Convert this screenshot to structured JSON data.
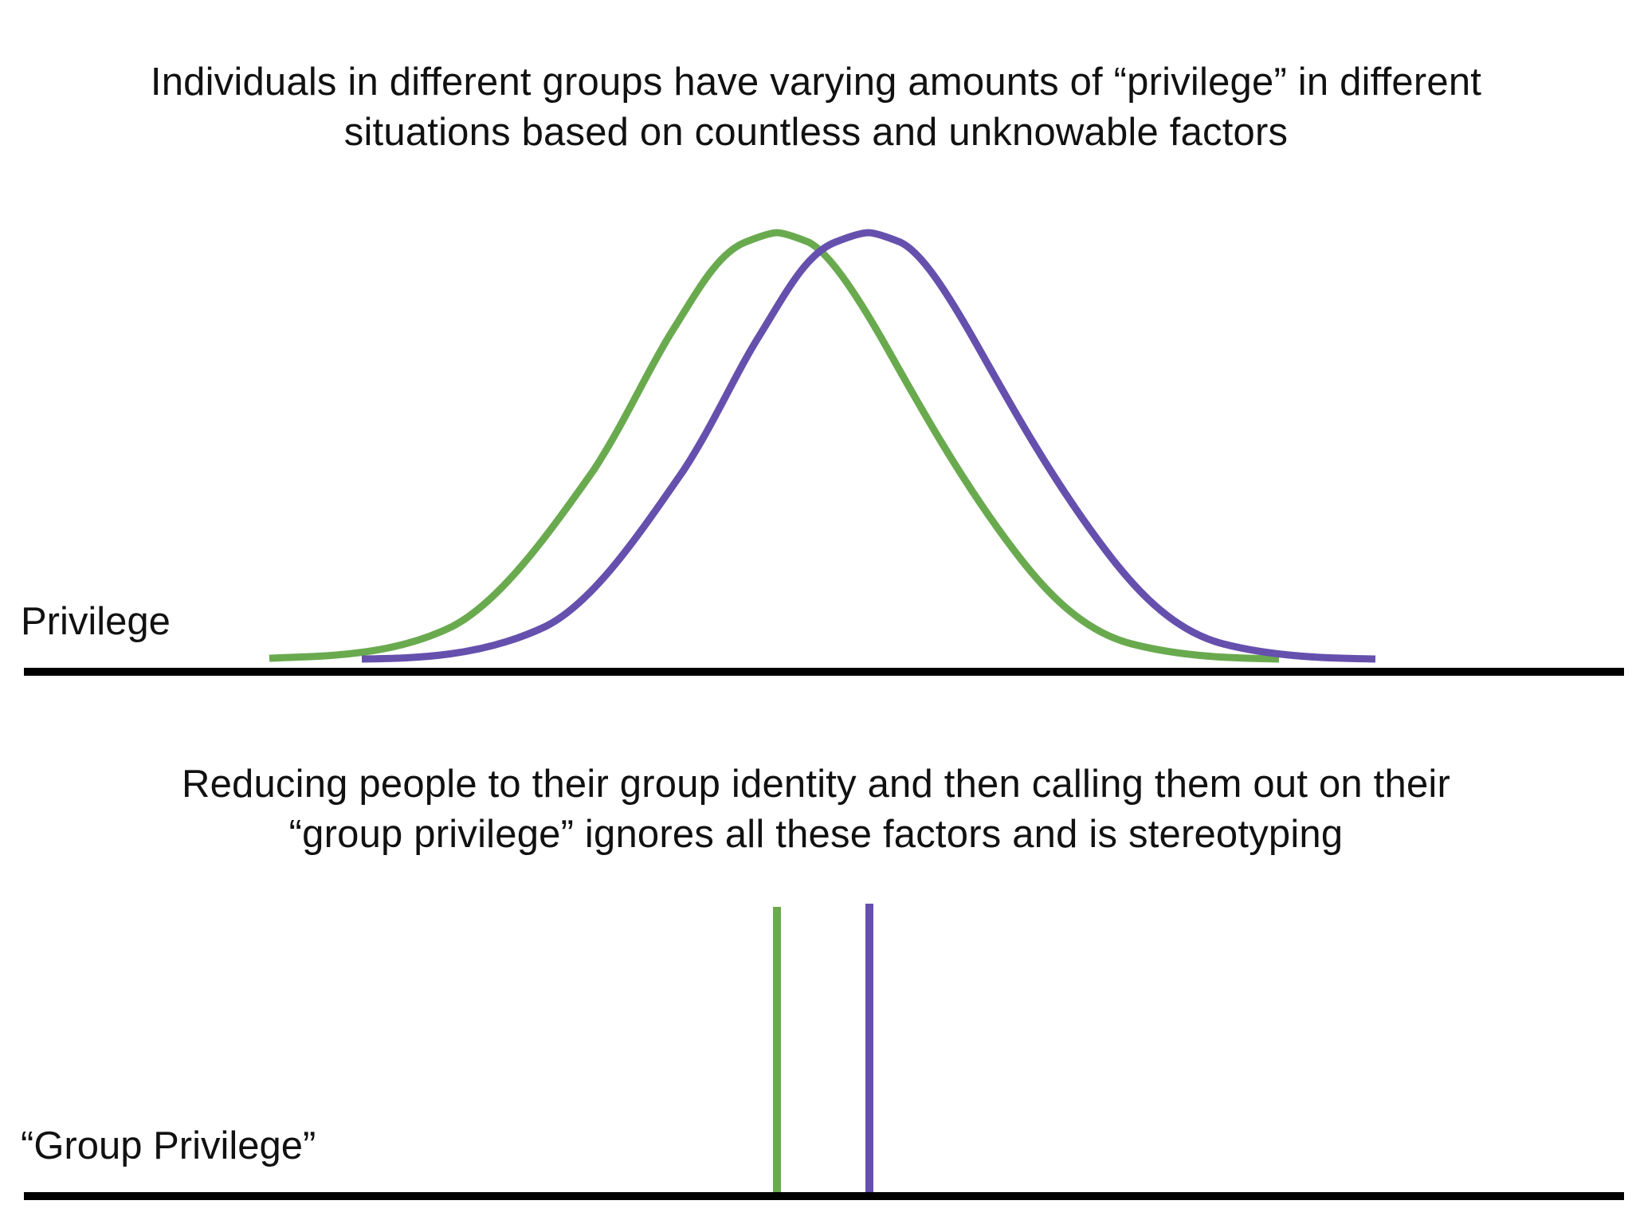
{
  "captions": {
    "top": {
      "line1": "Individuals in different groups have varying amounts of “privilege” in different",
      "line2": "situations based on countless and unknowable factors"
    },
    "bottom": {
      "line1": "Reducing people to their group identity and then calling them out on their",
      "line2": "“group privilege” ignores all these factors and is stereotyping"
    }
  },
  "axis_labels": {
    "top": "Privilege",
    "bottom": "“Group Privilege”"
  },
  "groups": [
    {
      "color": "#6aaa4f"
    },
    {
      "color": "#6650ad"
    }
  ],
  "axis_color": "#000000"
}
